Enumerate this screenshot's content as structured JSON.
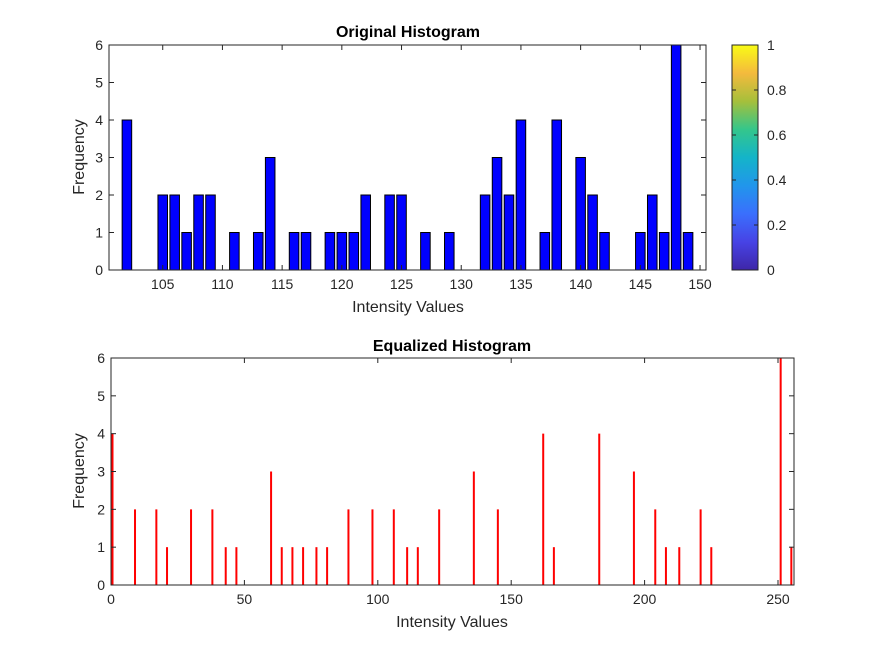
{
  "chart_data": [
    {
      "type": "bar",
      "title": "Original Histogram",
      "xlabel": "Intensity Values",
      "ylabel": "Frequency",
      "xlim": [
        100.5,
        150.5
      ],
      "ylim": [
        0,
        6
      ],
      "xticks": [
        105,
        110,
        115,
        120,
        125,
        130,
        135,
        140,
        145,
        150
      ],
      "yticks": [
        0,
        1,
        2,
        3,
        4,
        5,
        6
      ],
      "bar_color": "#0000ff",
      "edge_color": "#000000",
      "grid": false,
      "x": [
        102,
        105,
        106,
        107,
        108,
        109,
        111,
        113,
        114,
        116,
        117,
        119,
        120,
        121,
        122,
        124,
        125,
        127,
        129,
        132,
        133,
        134,
        135,
        137,
        138,
        140,
        141,
        142,
        145,
        146,
        147,
        148,
        149
      ],
      "values": [
        4,
        2,
        2,
        1,
        2,
        2,
        1,
        1,
        3,
        1,
        1,
        1,
        1,
        1,
        2,
        2,
        2,
        1,
        1,
        2,
        3,
        2,
        4,
        1,
        4,
        3,
        2,
        1,
        1,
        2,
        1,
        6,
        1
      ],
      "colorbar": {
        "position": "right",
        "colormap": "parula",
        "limits": [
          0,
          1
        ],
        "ticks": [
          "0",
          "0.2",
          "0.4",
          "0.6",
          "0.8",
          "1"
        ]
      }
    },
    {
      "type": "stem",
      "title": "Equalized Histogram",
      "xlabel": "Intensity Values",
      "ylabel": "Frequency",
      "xlim": [
        0,
        256
      ],
      "ylim": [
        0,
        6
      ],
      "xticks": [
        0,
        50,
        100,
        150,
        200,
        250
      ],
      "yticks": [
        0,
        1,
        2,
        3,
        4,
        5,
        6
      ],
      "line_color": "#ff0000",
      "grid": false,
      "x": [
        0,
        9,
        17,
        21,
        30,
        38,
        43,
        47,
        60,
        64,
        68,
        72,
        77,
        81,
        89,
        98,
        106,
        111,
        115,
        123,
        136,
        145,
        162,
        166,
        183,
        196,
        204,
        208,
        213,
        221,
        225,
        251,
        255
      ],
      "values": [
        4,
        2,
        2,
        1,
        2,
        2,
        1,
        1,
        3,
        1,
        1,
        1,
        1,
        1,
        2,
        2,
        2,
        1,
        1,
        2,
        3,
        2,
        4,
        1,
        4,
        3,
        2,
        1,
        1,
        2,
        1,
        6,
        1
      ]
    }
  ]
}
